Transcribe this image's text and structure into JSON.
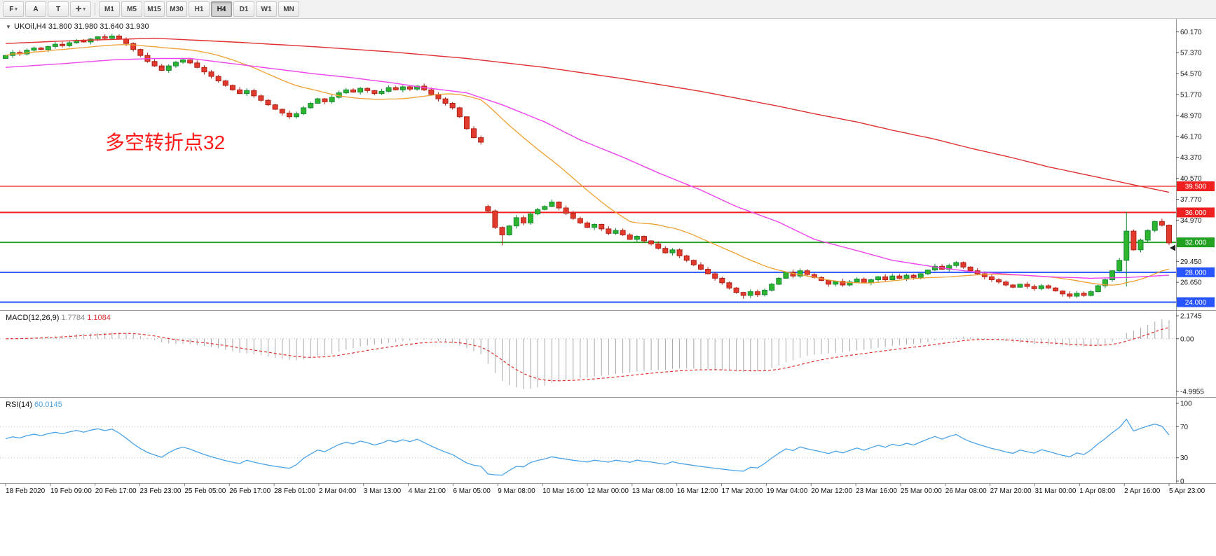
{
  "toolbar": {
    "tool_buttons": [
      {
        "label": "F",
        "name": "tool-f-button",
        "icon": "indicator-f-icon",
        "has_dropdown": true
      },
      {
        "label": "A",
        "name": "tool-a-button",
        "icon": "text-a-icon",
        "has_dropdown": false
      },
      {
        "label": "T",
        "name": "tool-t-button",
        "icon": "text-t-icon",
        "has_dropdown": false
      },
      {
        "label": "✛",
        "name": "crosshair-tool-button",
        "icon": "crosshair-icon",
        "has_dropdown": true
      }
    ],
    "timeframes": [
      "M1",
      "M5",
      "M15",
      "M30",
      "H1",
      "H4",
      "D1",
      "W1",
      "MN"
    ],
    "active_timeframe": "H4"
  },
  "chart_data": [
    {
      "type": "candlestick",
      "symbol": "UKOil,H4",
      "title_parts": {
        "symbol": "UKOil,H4",
        "open": "31.800",
        "high": "31.980",
        "low": "31.640",
        "close": "31.930"
      },
      "annotation": {
        "text": "多空转折点32",
        "color": "#ff1a1a",
        "font_size": 28
      },
      "ylim": [
        23.3,
        61.7
      ],
      "x_labels": [
        "18 Feb 2020",
        "19 Feb 09:00",
        "20 Feb 17:00",
        "23 Feb 23:00",
        "25 Feb 05:00",
        "26 Feb 17:00",
        "28 Feb 01:00",
        "2 Mar 04:00",
        "3 Mar 13:00",
        "4 Mar 21:00",
        "6 Mar 05:00",
        "9 Mar 08:00",
        "10 Mar 16:00",
        "12 Mar 00:00",
        "13 Mar 08:00",
        "16 Mar 12:00",
        "17 Mar 20:00",
        "19 Mar 04:00",
        "20 Mar 12:00",
        "23 Mar 16:00",
        "25 Mar 00:00",
        "26 Mar 08:00",
        "27 Mar 20:00",
        "31 Mar 00:00",
        "1 Apr 08:00",
        "2 Apr 16:00",
        "5 Apr 23:00"
      ],
      "price_axis_ticks": [
        "60.170",
        "57.370",
        "54.570",
        "51.770",
        "48.970",
        "46.170",
        "43.370",
        "40.570",
        "37.770",
        "34.970",
        "29.450",
        "26.650"
      ],
      "levels": [
        {
          "value": 39.5,
          "label": "39.500",
          "color": "#f02020",
          "width": 1.2
        },
        {
          "value": 36.0,
          "label": "36.000",
          "color": "#f02020",
          "width": 2
        },
        {
          "value": 32.0,
          "label": "32.000",
          "color": "#22a022",
          "width": 2
        },
        {
          "value": 28.0,
          "label": "28.000",
          "color": "#2855ff",
          "width": 2
        },
        {
          "value": 24.0,
          "label": "24.000",
          "color": "#2855ff",
          "width": 2
        }
      ],
      "closes": [
        57.0,
        57.4,
        57.2,
        57.7,
        58.0,
        57.8,
        58.2,
        58.5,
        58.3,
        58.7,
        59.0,
        58.8,
        59.2,
        59.5,
        59.3,
        59.6,
        59.2,
        58.6,
        57.8,
        57.0,
        56.2,
        55.6,
        55.0,
        55.6,
        56.1,
        56.4,
        56.0,
        55.4,
        54.8,
        54.2,
        53.6,
        53.0,
        52.4,
        51.9,
        52.3,
        51.6,
        51.0,
        50.4,
        49.8,
        49.3,
        48.8,
        49.2,
        50.0,
        50.6,
        51.2,
        50.8,
        51.4,
        52.0,
        52.4,
        52.1,
        52.6,
        52.3,
        51.9,
        52.2,
        52.7,
        52.4,
        52.8,
        52.5,
        52.9,
        52.4,
        51.8,
        51.2,
        50.6,
        50.0,
        48.8,
        47.2,
        46.0,
        45.4,
        36.2,
        34.0,
        33.0,
        34.2,
        35.3,
        34.6,
        35.8,
        36.4,
        36.8,
        37.4,
        36.6,
        35.9,
        35.2,
        34.6,
        34.0,
        34.4,
        33.8,
        33.2,
        33.6,
        33.0,
        32.4,
        32.8,
        32.2,
        31.8,
        31.2,
        30.6,
        31.0,
        30.2,
        29.6,
        29.0,
        28.4,
        27.8,
        27.2,
        26.6,
        25.9,
        25.3,
        24.9,
        25.4,
        25.0,
        25.6,
        26.4,
        27.2,
        28.0,
        27.5,
        28.2,
        27.7,
        27.3,
        26.9,
        26.4,
        26.8,
        26.3,
        26.7,
        27.1,
        26.6,
        27.0,
        27.4,
        27.0,
        27.5,
        27.2,
        27.6,
        27.3,
        27.8,
        28.3,
        28.8,
        28.4,
        28.9,
        29.3,
        28.7,
        28.2,
        27.8,
        27.4,
        27.0,
        26.7,
        26.3,
        26.0,
        26.4,
        26.1,
        25.8,
        26.2,
        25.9,
        25.5,
        25.1,
        24.8,
        25.2,
        24.9,
        25.4,
        26.2,
        27.0,
        28.2,
        29.6,
        33.5,
        31.0,
        32.3,
        33.6,
        34.8,
        34.3,
        31.93
      ],
      "open_overrides": {
        "68": 36.8
      },
      "wick_overrides": {
        "70": {
          "low": 31.6
        },
        "77": {
          "high": 37.75
        },
        "104": {
          "low": 24.45
        },
        "150": {
          "low": 24.5
        },
        "158": {
          "high": 36.1,
          "low": 26.1
        },
        "164": {
          "high": 34.4,
          "low": 31.64
        }
      },
      "ma_fast_period": 21,
      "ma_mid_points": [
        [
          0,
          55.4
        ],
        [
          8,
          55.9
        ],
        [
          15,
          56.4
        ],
        [
          21,
          56.6
        ],
        [
          26,
          56.6
        ],
        [
          32,
          55.9
        ],
        [
          38,
          55.2
        ],
        [
          43,
          54.6
        ],
        [
          49,
          54.0
        ],
        [
          54,
          53.4
        ],
        [
          59,
          52.7
        ],
        [
          65,
          52.0
        ],
        [
          70,
          50.4
        ],
        [
          76,
          48.1
        ],
        [
          81,
          45.7
        ],
        [
          87,
          43.4
        ],
        [
          92,
          41.3
        ],
        [
          98,
          39.0
        ],
        [
          103,
          36.8
        ],
        [
          109,
          34.7
        ],
        [
          114,
          32.4
        ],
        [
          120,
          30.9
        ],
        [
          125,
          29.6
        ],
        [
          131,
          28.7
        ],
        [
          136,
          28.1
        ],
        [
          142,
          27.7
        ],
        [
          147,
          27.4
        ],
        [
          153,
          27.2
        ],
        [
          158,
          27.3
        ],
        [
          164,
          27.6
        ]
      ],
      "ma_slow_points": [
        [
          0,
          58.6
        ],
        [
          10,
          59.0
        ],
        [
          21,
          59.3
        ],
        [
          32,
          58.8
        ],
        [
          43,
          58.2
        ],
        [
          54,
          57.5
        ],
        [
          65,
          56.6
        ],
        [
          76,
          55.4
        ],
        [
          87,
          53.9
        ],
        [
          98,
          52.2
        ],
        [
          109,
          50.2
        ],
        [
          114,
          49.2
        ],
        [
          120,
          48.1
        ],
        [
          125,
          47.0
        ],
        [
          131,
          45.8
        ],
        [
          136,
          44.6
        ],
        [
          142,
          43.3
        ],
        [
          147,
          42.1
        ],
        [
          153,
          40.9
        ],
        [
          158,
          39.9
        ],
        [
          164,
          38.7
        ]
      ],
      "colors": {
        "up": "#2db52d",
        "up_border": "#168a38",
        "down": "#e23b2e",
        "down_border": "#b02318",
        "ma_fast": "#f0a030",
        "ma_mid": "#ee44ee",
        "ma_slow": "#e03030"
      }
    },
    {
      "type": "macd",
      "label": "MACD(12,26,9)",
      "value_main": "1.7784",
      "value_signal": "1.1084",
      "fast": 12,
      "slow": 26,
      "signal": 9,
      "ylim": [
        -4.9955,
        2.1745
      ],
      "axis_ticks": [
        {
          "v": 2.1745,
          "label": "2.1745"
        },
        {
          "v": 0,
          "label": "0.00"
        },
        {
          "v": -4.9955,
          "label": "-4.9955"
        }
      ],
      "colors": {
        "histogram": "#a8a8a8",
        "signal": "#e03030"
      }
    },
    {
      "type": "rsi",
      "label": "RSI(14)",
      "value": "60.0145",
      "period": 14,
      "ylim": [
        0,
        100
      ],
      "axis_ticks": [
        {
          "v": 100,
          "label": "100"
        },
        {
          "v": 70,
          "label": "70"
        },
        {
          "v": 30,
          "label": "30"
        },
        {
          "v": 0,
          "label": "0"
        }
      ],
      "levels": [
        70,
        30
      ],
      "color": "#4aa3e8"
    }
  ]
}
